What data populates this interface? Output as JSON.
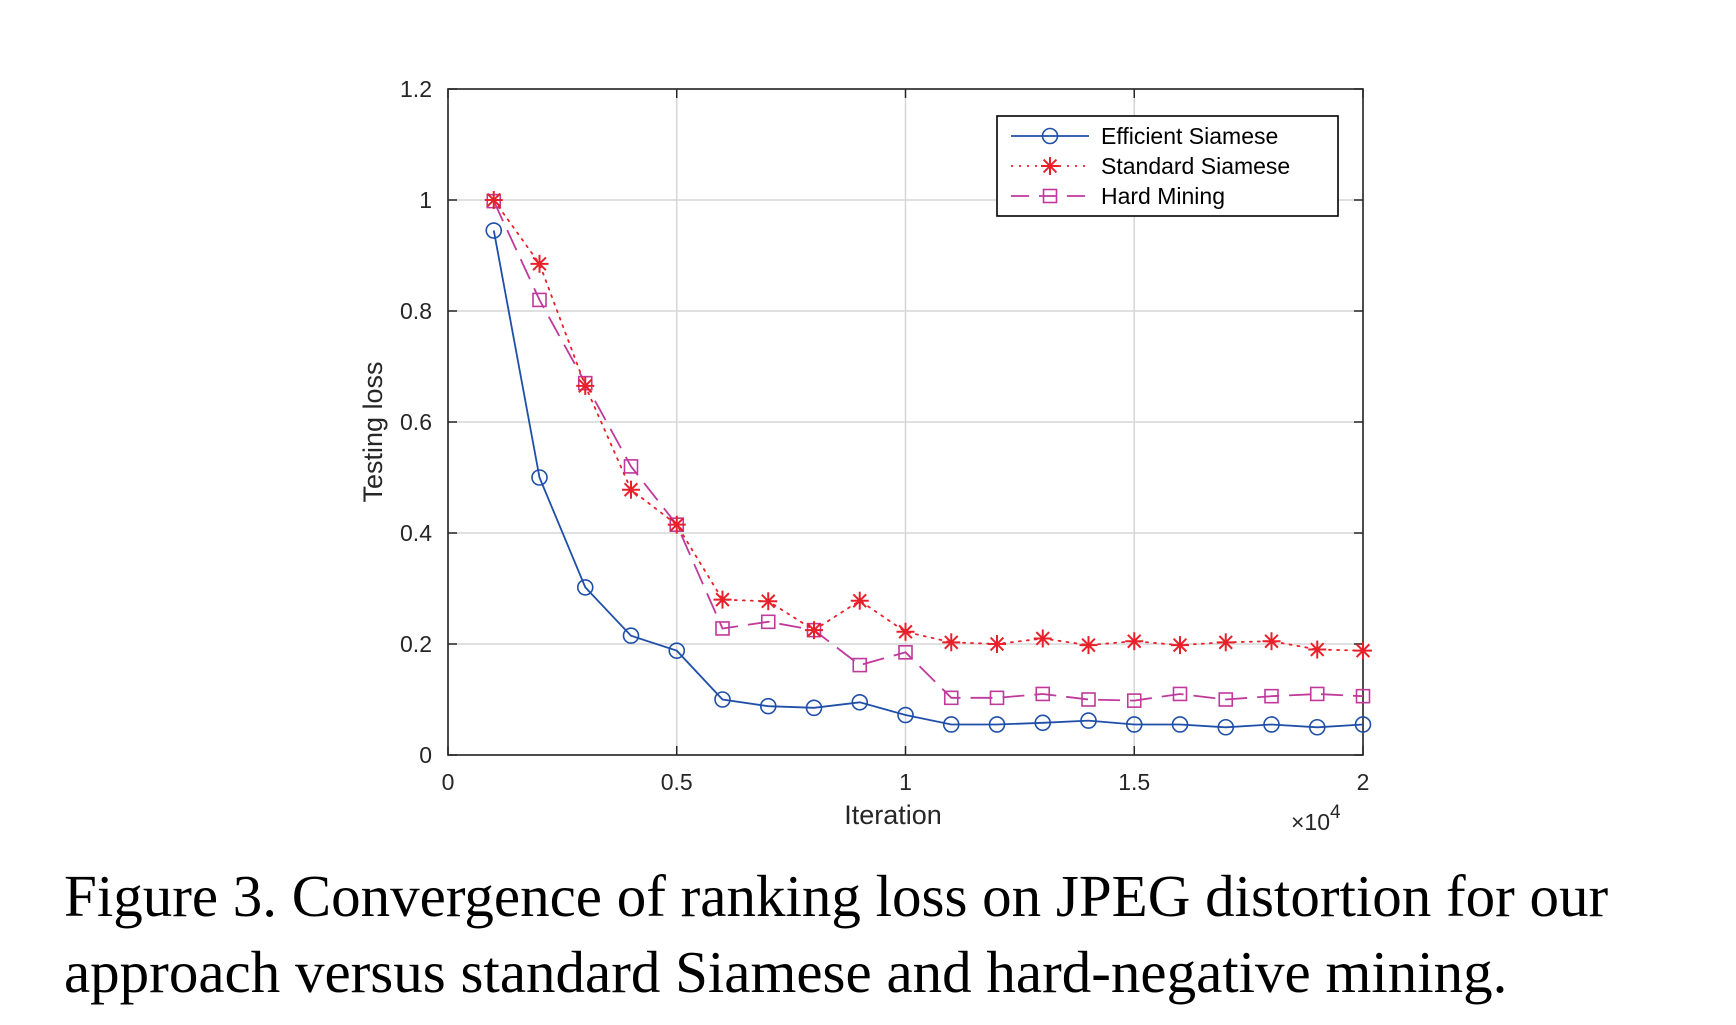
{
  "chart_data": {
    "type": "line",
    "xlabel": "Iteration",
    "ylabel": "Testing loss",
    "x_multiplier": "×10",
    "x_multiplier_exp": "4",
    "xlim": [
      0,
      2
    ],
    "ylim": [
      0,
      1.2
    ],
    "x_ticks": [
      "0",
      "0.5",
      "1",
      "1.5",
      "2"
    ],
    "y_ticks": [
      "0",
      "0.2",
      "0.4",
      "0.6",
      "0.8",
      "1",
      "1.2"
    ],
    "grid": true,
    "legend_position": "top-right",
    "x": [
      0.1,
      0.2,
      0.3,
      0.4,
      0.5,
      0.6,
      0.7,
      0.8,
      0.9,
      1.0,
      1.1,
      1.2,
      1.3,
      1.4,
      1.5,
      1.6,
      1.7,
      1.8,
      1.9,
      2.0
    ],
    "series": [
      {
        "name": "Efficient Siamese",
        "color": "#1f4fa8",
        "line_style": "solid",
        "marker": "circle",
        "values": [
          0.945,
          0.5,
          0.302,
          0.215,
          0.188,
          0.1,
          0.088,
          0.085,
          0.095,
          0.072,
          0.055,
          0.055,
          0.058,
          0.062,
          0.055,
          0.055,
          0.05,
          0.055,
          0.05,
          0.055
        ]
      },
      {
        "name": "Standard Siamese",
        "color": "#e8202a",
        "line_style": "dotted",
        "marker": "star",
        "values": [
          1.0,
          0.885,
          0.665,
          0.478,
          0.415,
          0.28,
          0.277,
          0.225,
          0.278,
          0.222,
          0.203,
          0.2,
          0.21,
          0.198,
          0.205,
          0.198,
          0.203,
          0.205,
          0.19,
          0.188
        ]
      },
      {
        "name": "Hard Mining",
        "color": "#c0399b",
        "line_style": "dashed",
        "marker": "square",
        "values": [
          0.998,
          0.82,
          0.67,
          0.52,
          0.415,
          0.228,
          0.24,
          0.225,
          0.162,
          0.185,
          0.103,
          0.103,
          0.11,
          0.1,
          0.098,
          0.11,
          0.1,
          0.106,
          0.11,
          0.106
        ]
      }
    ]
  },
  "caption": "Figure 3. Convergence of ranking loss on JPEG distortion for our approach versus standard Siamese and hard-negative mining."
}
